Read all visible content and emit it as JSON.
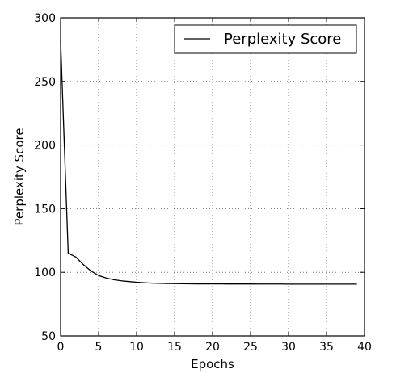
{
  "chart_data": {
    "type": "line",
    "title": "",
    "xlabel": "Epochs",
    "ylabel": "Perplexity Score",
    "xlim": [
      0,
      40
    ],
    "ylim": [
      50,
      300
    ],
    "xticks": [
      0,
      5,
      10,
      15,
      20,
      25,
      30,
      35,
      40
    ],
    "yticks": [
      50,
      100,
      150,
      200,
      250,
      300
    ],
    "grid": true,
    "legend_position": "top-right",
    "series": [
      {
        "name": "Perplexity Score",
        "color": "#000000",
        "x": [
          0,
          1,
          2,
          3,
          4,
          5,
          6,
          7,
          8,
          9,
          10,
          11,
          12,
          13,
          14,
          15,
          16,
          17,
          18,
          19,
          20,
          21,
          22,
          23,
          24,
          25,
          26,
          27,
          28,
          29,
          30,
          31,
          32,
          33,
          34,
          35,
          36,
          37,
          38,
          39
        ],
        "y": [
          282,
          115,
          112,
          106,
          101,
          97.5,
          95.5,
          94.2,
          93.3,
          92.7,
          92.2,
          91.8,
          91.5,
          91.3,
          91.2,
          91.1,
          91.0,
          90.95,
          90.9,
          90.9,
          90.85,
          90.85,
          90.8,
          90.8,
          90.8,
          90.8,
          90.75,
          90.75,
          90.75,
          90.75,
          90.7,
          90.7,
          90.7,
          90.7,
          90.7,
          90.7,
          90.7,
          90.7,
          90.7,
          90.7
        ]
      }
    ]
  }
}
